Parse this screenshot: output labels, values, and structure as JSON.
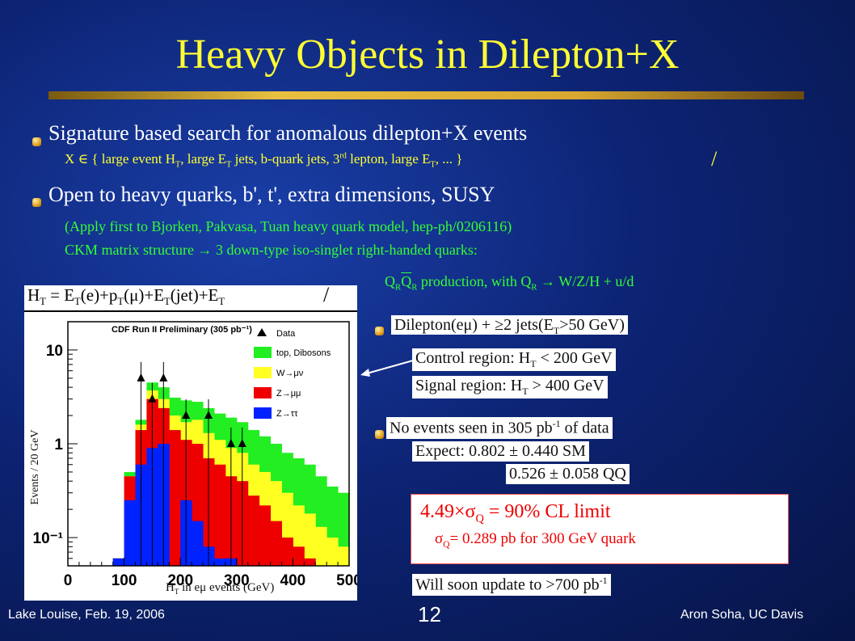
{
  "slide": {
    "title": "Heavy Objects in Dilepton+X",
    "bullet1": "Signature based search for anomalous dilepton+X events",
    "sub1_x": "X ∈ { large event H",
    "sub1_T1": "T",
    "sub1_a": ", large E",
    "sub1_T2": "T",
    "sub1_b": " jets, b-quark jets, 3",
    "sub1_rd": "rd",
    "sub1_c": " lepton, large E",
    "sub1_T3": "T",
    "sub1_d": ", ... }",
    "slash1": "/",
    "bullet2": "Open to heavy quarks, b', t', extra dimensions, SUSY",
    "sub2_line1": "(Apply first to Bjorken, Pakvasa, Tuan heavy quark model, hep-ph/0206116)",
    "sub2_line2": "CKM matrix structure → 3 down-type iso-singlet right-handed quarks:",
    "prod_Q1": "Q",
    "prod_R1": "R",
    "prod_Q2": "Q",
    "prod_R2": "R",
    "prod_rest": " production, with Q",
    "prod_R3": "R",
    "prod_arrow": " →  W/Z/H + u/d",
    "ht_formula": "H",
    "ht_T": "T",
    "ht_eq": " = E",
    "ht_T2": "T",
    "ht_mid": "(e)+p",
    "ht_T3": "T",
    "ht_mid2": "(μ)+E",
    "ht_T4": "T",
    "ht_mid3": "(jet)+E",
    "ht_T5": "T",
    "slash2": "/",
    "dilep_a": "Dilepton(eμ) + ",
    "dilep_b": "≥2 jets(E",
    "dilep_T": "T",
    "dilep_c": ">50 GeV)",
    "control_a": "Control region:  H",
    "control_T": "T",
    "control_b": " < 200 GeV",
    "signal_a": "Signal region:  H",
    "signal_T": "T",
    "signal_b": " > 400 GeV",
    "noevents_a": "No events seen in 305 pb",
    "noevents_sup": "-1",
    "noevents_b": " of data",
    "expect_a": "Expect:  0.802 ± 0.440 SM",
    "expect_b": "0.526 ± 0.058 QQ",
    "limit_a": "4.49×σ",
    "limit_Q": "Q",
    "limit_b": " = 90% CL limit",
    "sigma_a": "σ",
    "sigma_Q": "Q",
    "sigma_b": "= 0.289 pb for 300 GeV quark",
    "update_a": "Will soon update to >700 pb",
    "update_sup": "-1",
    "footer_left": "Lake Louise, Feb. 19, 2006",
    "footer_center": "12",
    "footer_right": "Aron Soha, UC Davis"
  },
  "colors": {
    "title": "#ffff33",
    "subtext_yellow": "#ffff33",
    "subtext_green": "#33ff33",
    "data_marker": "#000000",
    "top_dibosons": "#22ee22",
    "w_munu": "#ffff22",
    "z_mumu": "#ee0000",
    "z_tautau": "#0022ff"
  },
  "chart_data": {
    "type": "bar",
    "title": "CDF Run II Preliminary (305 pb⁻¹)",
    "xlabel_a": "H",
    "xlabel_T": "T",
    "xlabel_b": " in eμ  events (GeV)",
    "ylabel": "Events / 20 GeV",
    "x_ticks": [
      "0",
      "100",
      "200",
      "300",
      "400",
      "500"
    ],
    "y_ticks": [
      "10",
      "1",
      "10⁻¹"
    ],
    "xlim": [
      0,
      500
    ],
    "ylim_log": [
      0.05,
      20
    ],
    "log_y": true,
    "legend_position": "top-right",
    "bin_edges": [
      0,
      20,
      40,
      60,
      80,
      100,
      120,
      140,
      160,
      180,
      200,
      220,
      240,
      260,
      280,
      300,
      320,
      340,
      360,
      380,
      400,
      420,
      440,
      460,
      480,
      500
    ],
    "series": [
      {
        "name": "Z→ττ",
        "color": "#0022ff",
        "values": [
          0.0,
          0.0,
          0.0,
          0.0,
          0.06,
          0.25,
          0.6,
          0.9,
          1.0,
          0.05,
          0.25,
          0.15,
          0.08,
          0.06,
          0.06,
          0.04,
          0.0,
          0.0,
          0.0,
          0.0,
          0.0,
          0.0,
          0.0,
          0.0,
          0.0
        ]
      },
      {
        "name": "Z→μμ",
        "color": "#ee0000",
        "values": [
          0.0,
          0.0,
          0.0,
          0.0,
          0.06,
          0.45,
          1.4,
          3.0,
          2.4,
          1.4,
          1.1,
          1.0,
          0.7,
          0.6,
          0.45,
          0.4,
          0.28,
          0.22,
          0.15,
          0.1,
          0.08,
          0.06,
          0.0,
          0.0,
          0.0
        ]
      },
      {
        "name": "W→μν",
        "color": "#ffff22",
        "values": [
          0.0,
          0.0,
          0.0,
          0.0,
          0.06,
          0.45,
          1.6,
          3.7,
          3.0,
          2.0,
          1.7,
          1.8,
          1.3,
          1.1,
          0.9,
          0.8,
          0.6,
          0.5,
          0.4,
          0.3,
          0.22,
          0.18,
          0.13,
          0.1,
          0.08
        ]
      },
      {
        "name": "top, Dibosons",
        "color": "#22ee22",
        "values": [
          0.0,
          0.0,
          0.0,
          0.0,
          0.06,
          0.5,
          1.8,
          4.5,
          4.0,
          3.1,
          2.9,
          2.8,
          2.4,
          2.1,
          1.9,
          1.7,
          1.4,
          1.2,
          1.0,
          0.8,
          0.7,
          0.6,
          0.45,
          0.35,
          0.3
        ]
      }
    ],
    "data_points": {
      "name": "Data",
      "x": [
        130,
        150,
        170,
        210,
        250,
        290,
        310
      ],
      "y": [
        5,
        3,
        5,
        2,
        2,
        1,
        1
      ]
    }
  }
}
